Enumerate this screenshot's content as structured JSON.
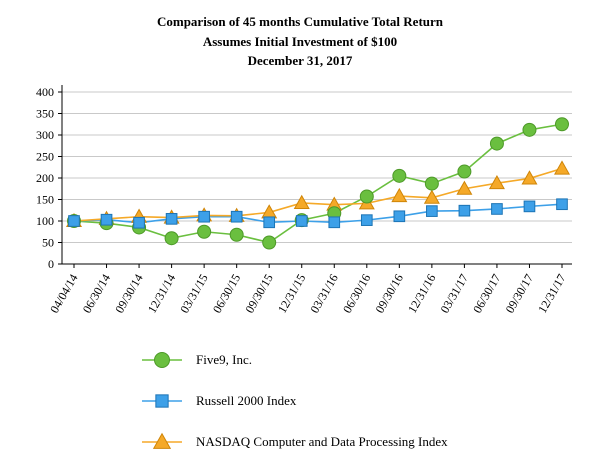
{
  "title": {
    "line1": "Comparison of 45 months Cumulative Total Return",
    "line2": "Assumes Initial Investment of $100",
    "line3": "December 31, 2017"
  },
  "chart_data": {
    "type": "line",
    "categories": [
      "04/04/14",
      "06/30/14",
      "09/30/14",
      "12/31/14",
      "03/31/15",
      "06/30/15",
      "09/30/15",
      "12/31/15",
      "03/31/16",
      "06/30/16",
      "09/30/16",
      "12/31/16",
      "03/31/17",
      "06/30/17",
      "09/30/17",
      "12/31/17"
    ],
    "ylim": [
      0,
      400
    ],
    "ytick_step": 50,
    "grid": true,
    "grid_color": "#c9c9c9",
    "axis_color": "#000000",
    "legend_position": "bottom",
    "series": [
      {
        "name": "Five9, Inc.",
        "marker": "circle",
        "color": "#6abf3f",
        "edge": "#4d9928",
        "values": [
          100,
          95,
          85,
          60,
          75,
          68,
          50,
          102,
          118,
          157,
          205,
          187,
          215,
          280,
          312,
          325
        ]
      },
      {
        "name": "Russell 2000 Index",
        "marker": "square",
        "color": "#3da0e8",
        "edge": "#1c74b5",
        "values": [
          100,
          103,
          96,
          105,
          110,
          110,
          97,
          100,
          97,
          102,
          111,
          123,
          124,
          128,
          134,
          139
        ]
      },
      {
        "name": "NASDAQ Computer and Data Processing Index",
        "marker": "triangle",
        "color": "#f5a928",
        "edge": "#cf8508",
        "values": [
          100,
          105,
          110,
          108,
          113,
          112,
          120,
          142,
          138,
          141,
          158,
          154,
          175,
          188,
          199,
          222
        ]
      }
    ]
  }
}
